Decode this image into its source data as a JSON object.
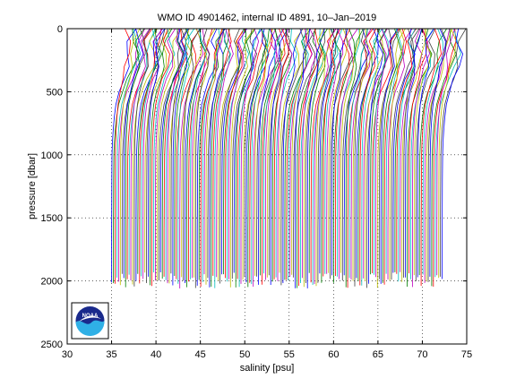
{
  "chart_data": {
    "type": "line",
    "title": "WMO ID 4901462, internal ID 4891, 10–Jan–2019",
    "xlabel": "salinity [psu]",
    "ylabel": "pressure [dbar]",
    "xlim": [
      30,
      75
    ],
    "ylim": [
      0,
      2500
    ],
    "y_reversed": true,
    "grid": "dotted",
    "x_ticks": [
      "30",
      "35",
      "40",
      "45",
      "50",
      "55",
      "60",
      "65",
      "70",
      "75"
    ],
    "y_ticks": [
      "0",
      "500",
      "1000",
      "1500",
      "2000",
      "2500"
    ],
    "profile_style": "waterfall of salinity profiles, each profile offset successively along x",
    "profile_colors": [
      "#0000ff",
      "#008000",
      "#ff0000",
      "#00bfbf",
      "#bf00bf",
      "#bfbf00",
      "#404040"
    ],
    "profile_count": 190,
    "profile_offset_start": 35.0,
    "profile_offset_step": 0.197,
    "series_template_pressure": [
      0,
      100,
      200,
      300,
      400,
      500,
      600,
      700,
      800,
      900,
      1000,
      1200,
      1400,
      1600,
      1800,
      2000
    ],
    "series_template_salinity_anomaly": [
      1.8,
      1.6,
      1.7,
      1.5,
      1.1,
      0.7,
      0.4,
      0.25,
      0.15,
      0.08,
      0.04,
      0.02,
      0.01,
      0.0,
      0.0,
      0.0
    ],
    "logo": "NOAA"
  }
}
